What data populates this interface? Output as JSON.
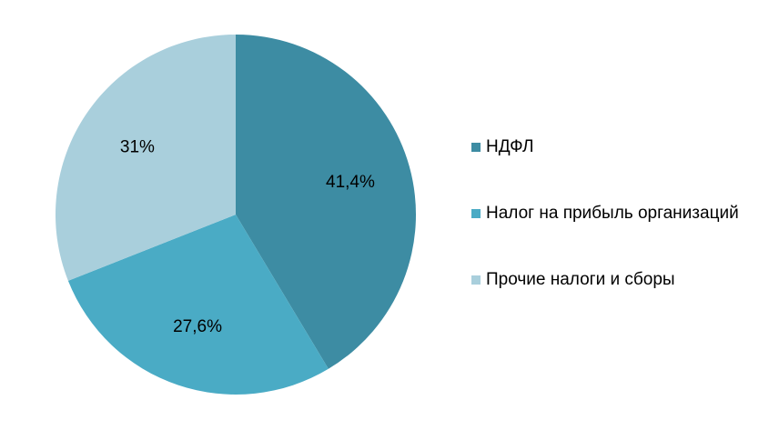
{
  "chart_data": {
    "type": "pie",
    "categories": [
      "НДФЛ",
      "Налог на прибыль организаций",
      "Прочие налоги и сборы"
    ],
    "values": [
      41.4,
      27.6,
      31
    ],
    "data_labels": [
      "41,4%",
      "27,6%",
      "31%"
    ],
    "colors": [
      "#3d8ca3",
      "#4aabc5",
      "#a9cfdc"
    ],
    "legend_position": "right",
    "start_angle": "top",
    "direction": "clockwise"
  }
}
